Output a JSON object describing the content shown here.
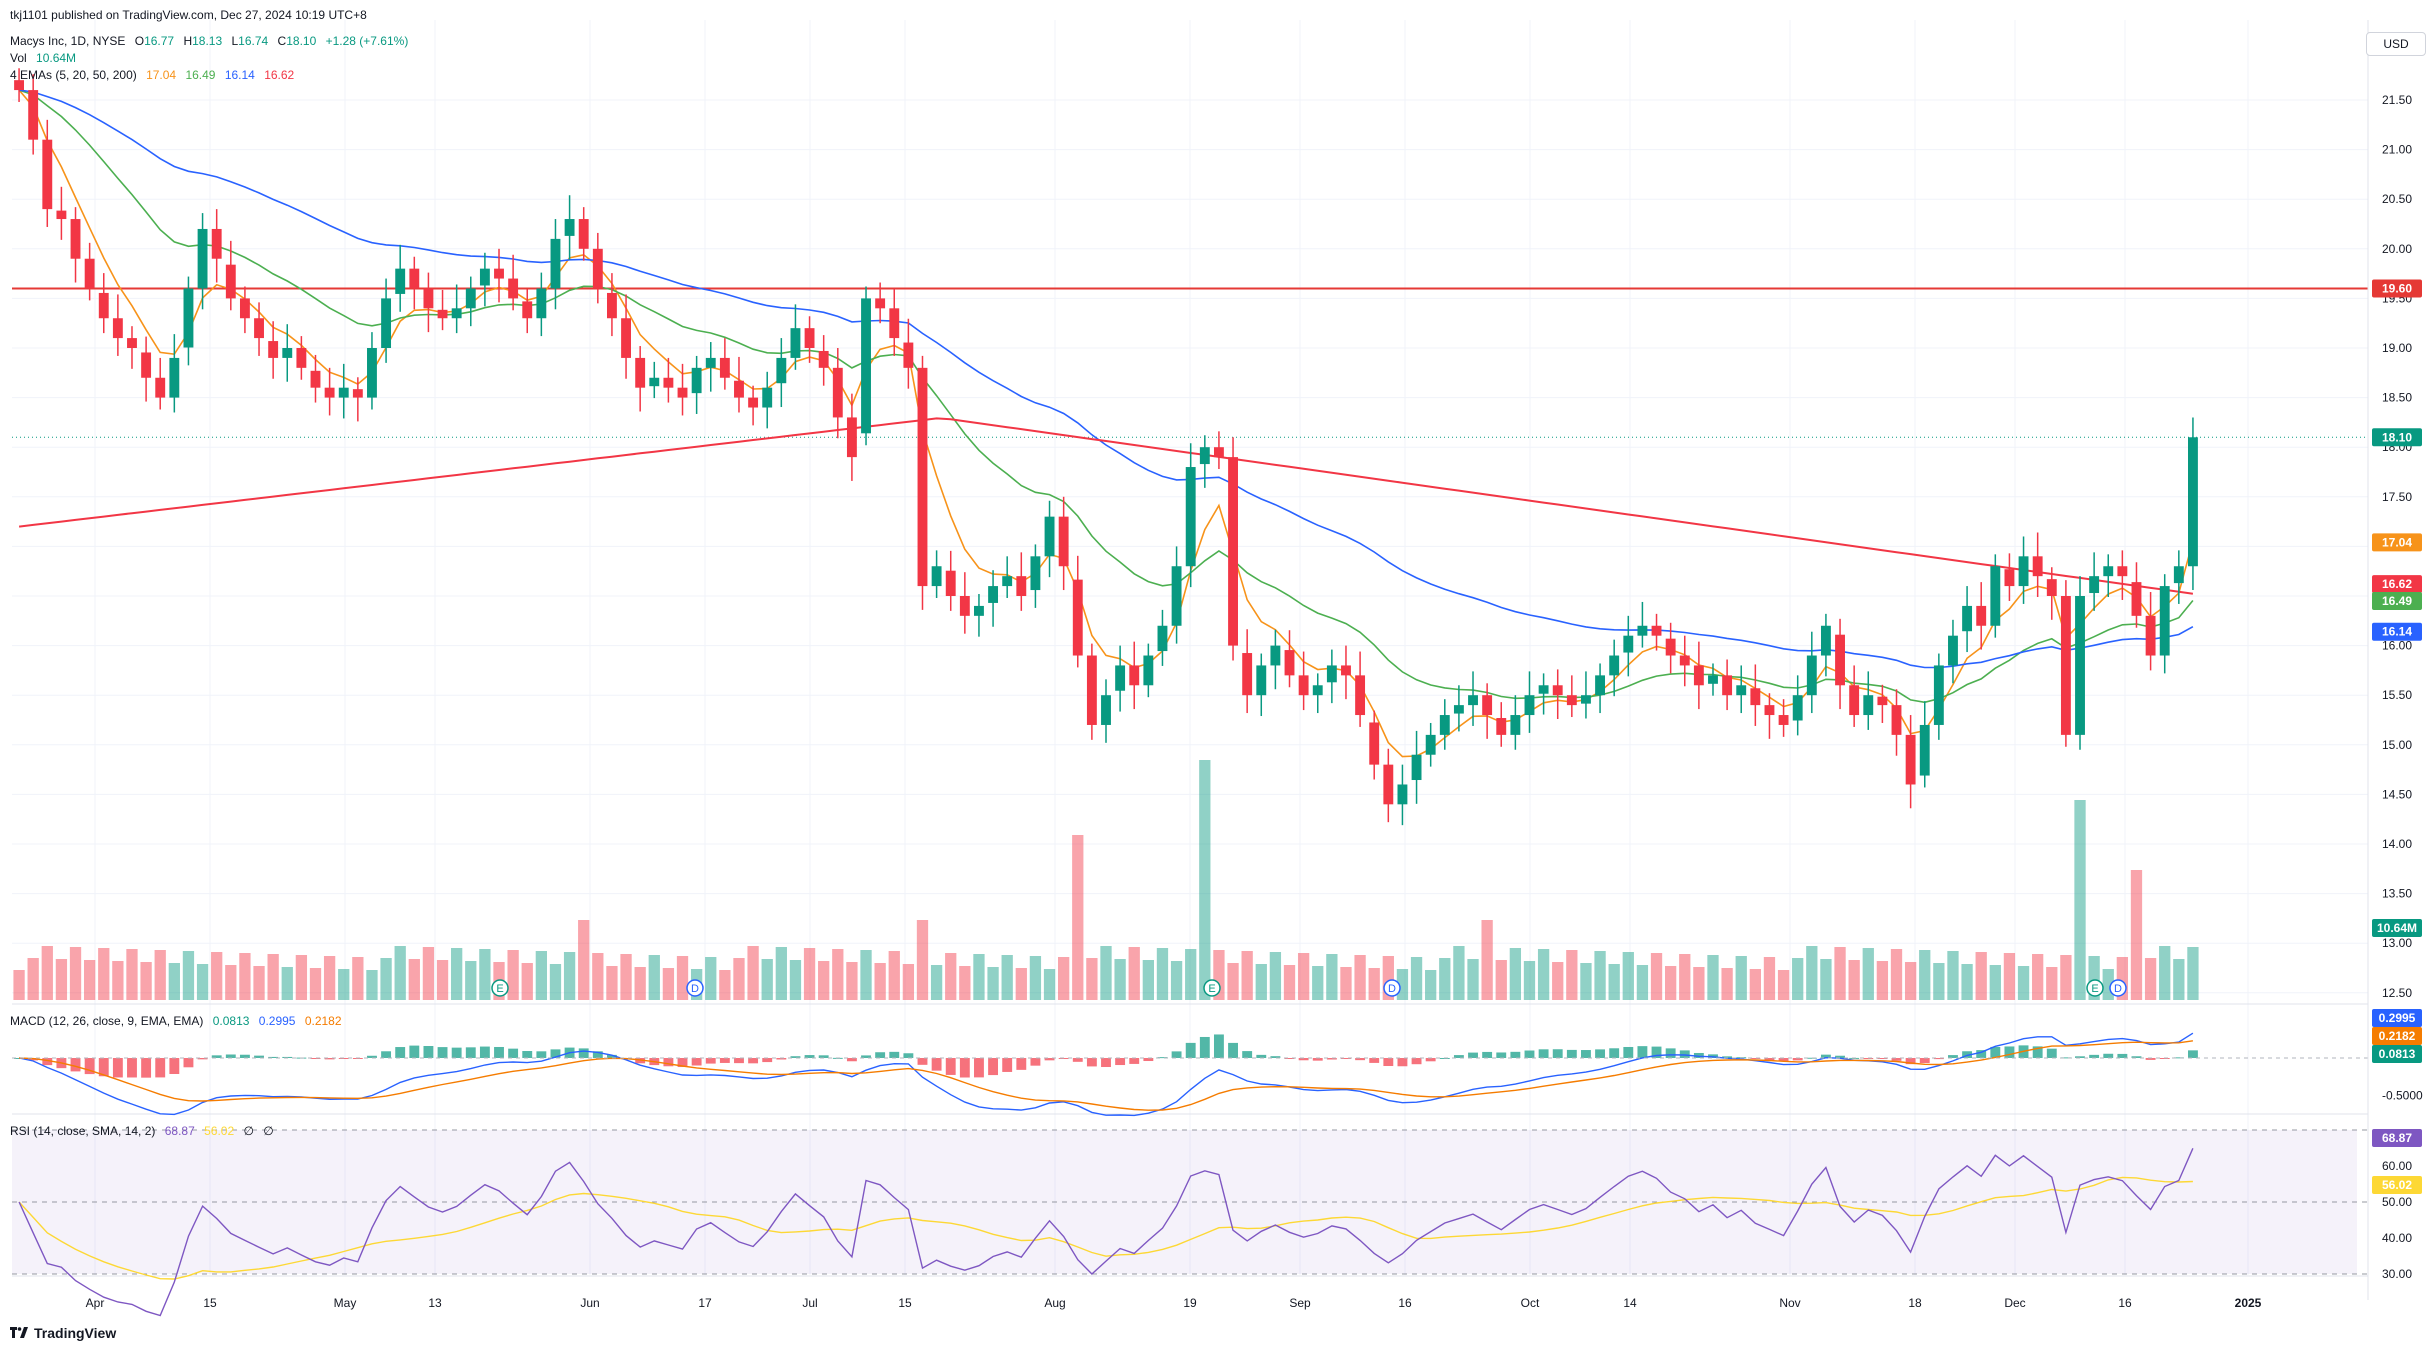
{
  "publisher": "tkj1101 published on TradingView.com, Dec 27, 2024 10:19 UTC+8",
  "symbol_line": {
    "name": "Macys Inc, 1D, NYSE",
    "o_label": "O",
    "o": "16.77",
    "h_label": "H",
    "h": "18.13",
    "l_label": "L",
    "l": "16.74",
    "c_label": "C",
    "c": "18.10",
    "change": "+1.28 (+7.61%)"
  },
  "vol_line": {
    "label": "Vol",
    "value": "10.64M"
  },
  "ema_line": {
    "label": "4 EMAs (5, 20, 50, 200)",
    "v5": "17.04",
    "v20": "16.49",
    "v50": "16.14",
    "v200": "16.62"
  },
  "currency": "USD",
  "macd_line": {
    "label": "MACD (12, 26, close, 9, EMA, EMA)",
    "hist": "0.0813",
    "macd": "0.2995",
    "signal": "0.2182"
  },
  "rsi_line": {
    "label": "RSI (14, close, SMA, 14, 2)",
    "rsi": "68.87",
    "sma": "56.02",
    "extra1": "∅",
    "extra2": "∅"
  },
  "colors": {
    "up": "#089981",
    "down": "#f23645",
    "ema5": "#f7931a",
    "ema20": "#4caf50",
    "ema50": "#2962ff",
    "ema200": "#f23645",
    "rsi": "#7e57c2",
    "rsi_ma": "#fdd835",
    "level": "#e53935"
  },
  "chart_data": {
    "type": "candlestick",
    "price_axis": {
      "ticks": [
        "21.50",
        "21.00",
        "20.50",
        "20.00",
        "19.50",
        "19.00",
        "18.50",
        "18.00",
        "17.50",
        "17.00",
        "16.50",
        "16.00",
        "15.50",
        "15.00",
        "14.50",
        "14.00",
        "13.50",
        "13.00",
        "12.50"
      ]
    },
    "x_ticks": [
      "Apr",
      "15",
      "May",
      "13",
      "Jun",
      "17",
      "Jul",
      "15",
      "Aug",
      "19",
      "Sep",
      "16",
      "Oct",
      "14",
      "Nov",
      "18",
      "Dec",
      "16",
      "2025"
    ],
    "horizontal_line": {
      "value": 19.6,
      "label": "19.60"
    },
    "last_price": {
      "value": 18.1,
      "label": "18.10"
    },
    "price_labels": {
      "ema5": "17.04",
      "ema200": "16.62",
      "ema20": "16.49",
      "ema50": "16.14",
      "volume": "10.64M"
    },
    "events": [
      "E",
      "D",
      "E",
      "D",
      "E",
      "D"
    ],
    "close": [
      21.6,
      21.1,
      20.4,
      20.3,
      19.9,
      19.6,
      19.3,
      19.1,
      19.0,
      18.7,
      18.5,
      18.9,
      19.6,
      20.2,
      19.9,
      19.5,
      19.3,
      19.1,
      18.9,
      19.0,
      18.8,
      18.6,
      18.5,
      18.6,
      18.5,
      19.0,
      19.5,
      19.8,
      19.6,
      19.4,
      19.3,
      19.4,
      19.6,
      19.8,
      19.7,
      19.5,
      19.3,
      19.6,
      20.1,
      20.3,
      20.0,
      19.6,
      19.3,
      18.9,
      18.6,
      18.7,
      18.6,
      18.5,
      18.8,
      18.9,
      18.7,
      18.5,
      18.4,
      18.6,
      18.9,
      19.2,
      19.0,
      18.8,
      18.3,
      17.9,
      19.5,
      19.4,
      19.1,
      18.8,
      16.6,
      16.8,
      16.5,
      16.3,
      16.4,
      16.6,
      16.7,
      16.5,
      16.9,
      17.3,
      16.8,
      15.9,
      15.2,
      15.5,
      15.8,
      15.6,
      15.9,
      16.2,
      16.8,
      17.8,
      18.0,
      17.9,
      16.0,
      15.5,
      15.8,
      16.0,
      15.7,
      15.5,
      15.6,
      15.8,
      15.7,
      15.3,
      14.8,
      14.4,
      14.6,
      14.9,
      15.1,
      15.3,
      15.4,
      15.5,
      15.3,
      15.1,
      15.3,
      15.5,
      15.6,
      15.5,
      15.4,
      15.5,
      15.7,
      15.9,
      16.1,
      16.2,
      16.1,
      15.9,
      15.8,
      15.6,
      15.7,
      15.5,
      15.6,
      15.4,
      15.3,
      15.2,
      15.5,
      15.9,
      16.2,
      15.6,
      15.3,
      15.5,
      15.4,
      15.1,
      14.6,
      15.2,
      15.8,
      16.1,
      16.4,
      16.2,
      16.8,
      16.6,
      16.9,
      16.7,
      16.5,
      15.1,
      16.5,
      16.7,
      16.8,
      16.7,
      16.3,
      15.9,
      16.6,
      16.8,
      18.1
    ]
  }
}
